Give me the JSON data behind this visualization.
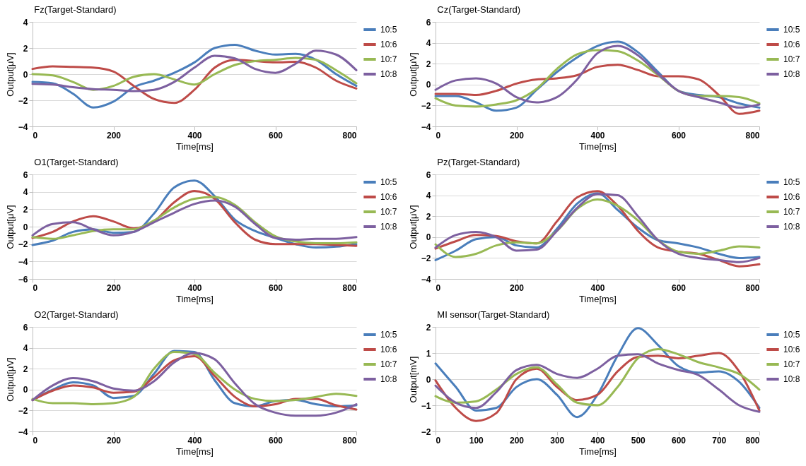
{
  "chart_data": [
    {
      "type": "line",
      "title": "Fz(Target-Standard)",
      "xlabel": "Time[ms]",
      "ylabel": "Output[μV]",
      "x": [
        0,
        50,
        100,
        150,
        200,
        250,
        300,
        350,
        400,
        450,
        500,
        550,
        600,
        650,
        700,
        750,
        800
      ],
      "xlim": [
        0,
        800
      ],
      "xticks": [
        0,
        200,
        400,
        600,
        800
      ],
      "ylim": [
        -4,
        4
      ],
      "yticks": [
        -4,
        -2,
        0,
        2,
        4
      ],
      "grid": "y",
      "legend": "top right",
      "series": [
        {
          "name": "10:5",
          "color": "#4a7ebb",
          "values": [
            -0.6,
            -0.7,
            -1.5,
            -2.55,
            -2.1,
            -1.0,
            -0.5,
            0.1,
            0.9,
            2.0,
            2.25,
            1.8,
            1.5,
            1.55,
            1.1,
            0.0,
            -0.9
          ]
        },
        {
          "name": "10:6",
          "color": "#be4b48",
          "values": [
            0.4,
            0.6,
            0.55,
            0.5,
            0.2,
            -0.9,
            -1.9,
            -2.2,
            -1.2,
            0.5,
            1.1,
            1.0,
            0.9,
            0.95,
            0.5,
            -0.5,
            -1.1
          ]
        },
        {
          "name": "10:7",
          "color": "#98b954",
          "values": [
            0.0,
            -0.1,
            -0.6,
            -1.2,
            -0.9,
            -0.2,
            0.0,
            -0.4,
            -0.8,
            0.0,
            0.7,
            1.0,
            1.1,
            1.25,
            1.1,
            0.3,
            -0.7
          ]
        },
        {
          "name": "10:8",
          "color": "#7d60a0",
          "values": [
            -0.75,
            -0.8,
            -1.0,
            -1.15,
            -1.2,
            -1.3,
            -1.2,
            -0.6,
            0.5,
            1.4,
            1.2,
            0.4,
            0.1,
            0.8,
            1.8,
            1.5,
            0.3
          ]
        }
      ]
    },
    {
      "type": "line",
      "title": "Cz(Target-Standard)",
      "xlabel": "Time[ms]",
      "ylabel": "Output[μV]",
      "x": [
        0,
        50,
        100,
        150,
        200,
        250,
        300,
        350,
        400,
        450,
        500,
        550,
        600,
        650,
        700,
        750,
        800
      ],
      "xlim": [
        0,
        800
      ],
      "xticks": [
        0,
        200,
        400,
        600,
        800
      ],
      "ylim": [
        -4,
        6
      ],
      "yticks": [
        -4,
        -2,
        0,
        2,
        4,
        6
      ],
      "grid": "y",
      "legend": "top right",
      "series": [
        {
          "name": "10:5",
          "color": "#4a7ebb",
          "values": [
            -1.1,
            -1.1,
            -1.7,
            -2.5,
            -2.2,
            -0.5,
            1.2,
            2.6,
            3.7,
            4.1,
            3.1,
            1.2,
            -0.6,
            -1.0,
            -1.2,
            -1.8,
            -2.2
          ]
        },
        {
          "name": "10:6",
          "color": "#be4b48",
          "values": [
            -0.9,
            -0.9,
            -1.0,
            -0.6,
            0.1,
            0.5,
            0.6,
            0.9,
            1.7,
            1.9,
            1.4,
            0.8,
            0.8,
            0.5,
            -1.0,
            -2.8,
            -2.5
          ]
        },
        {
          "name": "10:7",
          "color": "#98b954",
          "values": [
            -1.3,
            -2.0,
            -2.1,
            -1.9,
            -1.5,
            -0.4,
            1.5,
            2.9,
            3.3,
            3.2,
            2.3,
            0.9,
            -0.6,
            -1.1,
            -1.1,
            -1.2,
            -1.8
          ]
        },
        {
          "name": "10:8",
          "color": "#7d60a0",
          "values": [
            -0.5,
            0.4,
            0.6,
            0.1,
            -1.2,
            -1.7,
            -1.2,
            0.5,
            3.0,
            3.7,
            2.8,
            1.0,
            -0.6,
            -1.2,
            -1.7,
            -2.2,
            -1.9
          ]
        }
      ]
    },
    {
      "type": "line",
      "title": "O1(Target-Standard)",
      "xlabel": "Time[ms]",
      "ylabel": "Output[μV]",
      "x": [
        0,
        50,
        100,
        150,
        200,
        250,
        300,
        350,
        400,
        450,
        500,
        550,
        600,
        650,
        700,
        750,
        800
      ],
      "xlim": [
        0,
        800
      ],
      "xticks": [
        0,
        200,
        400,
        600,
        800
      ],
      "ylim": [
        -6,
        6
      ],
      "yticks": [
        -6,
        -4,
        -2,
        0,
        2,
        4,
        6
      ],
      "grid": "y",
      "legend": "top right",
      "series": [
        {
          "name": "10:5",
          "color": "#4a7ebb",
          "values": [
            -2.1,
            -1.6,
            -0.6,
            -0.3,
            -0.7,
            -0.6,
            1.5,
            4.5,
            5.3,
            3.5,
            0.8,
            -0.5,
            -1.3,
            -2.0,
            -2.4,
            -2.3,
            -2.0
          ]
        },
        {
          "name": "10:6",
          "color": "#be4b48",
          "values": [
            -1.3,
            -0.6,
            0.6,
            1.2,
            0.6,
            -0.2,
            0.6,
            2.8,
            4.1,
            3.2,
            0.5,
            -1.5,
            -2.0,
            -2.0,
            -2.0,
            -2.1,
            -2.2
          ]
        },
        {
          "name": "10:7",
          "color": "#98b954",
          "values": [
            -1.2,
            -1.4,
            -1.0,
            -0.5,
            -0.3,
            -0.3,
            0.7,
            2.2,
            3.2,
            3.4,
            2.5,
            0.5,
            -1.1,
            -1.7,
            -1.9,
            -1.9,
            -1.8
          ]
        },
        {
          "name": "10:8",
          "color": "#7d60a0",
          "values": [
            -1.0,
            0.3,
            0.5,
            -0.3,
            -1.0,
            -0.6,
            0.5,
            1.6,
            2.6,
            3.0,
            2.3,
            0.3,
            -1.3,
            -1.5,
            -1.4,
            -1.4,
            -1.2
          ]
        }
      ]
    },
    {
      "type": "line",
      "title": "Pz(Target-Standard)",
      "xlabel": "Time[ms]",
      "ylabel": "Output[μV]",
      "x": [
        0,
        50,
        100,
        150,
        200,
        250,
        300,
        350,
        400,
        450,
        500,
        550,
        600,
        650,
        700,
        750,
        800
      ],
      "xlim": [
        0,
        800
      ],
      "xticks": [
        0,
        200,
        400,
        600,
        800
      ],
      "ylim": [
        -4,
        6
      ],
      "yticks": [
        -4,
        -2,
        0,
        2,
        4,
        6
      ],
      "grid": "y",
      "legend": "top right",
      "series": [
        {
          "name": "10:5",
          "color": "#4a7ebb",
          "values": [
            -2.2,
            -1.3,
            -0.2,
            0.0,
            -0.8,
            -1.0,
            0.8,
            3.2,
            4.2,
            2.6,
            0.9,
            -0.3,
            -0.6,
            -1.0,
            -1.6,
            -2.0,
            -1.9
          ]
        },
        {
          "name": "10:6",
          "color": "#be4b48",
          "values": [
            -1.1,
            -0.4,
            0.2,
            0.1,
            -0.4,
            -0.6,
            1.5,
            3.8,
            4.4,
            3.0,
            0.6,
            -1.0,
            -1.4,
            -1.6,
            -2.2,
            -2.8,
            -2.6
          ]
        },
        {
          "name": "10:7",
          "color": "#98b954",
          "values": [
            -0.7,
            -1.9,
            -1.6,
            -0.8,
            -0.5,
            -0.6,
            0.6,
            2.7,
            3.6,
            3.0,
            1.6,
            -0.3,
            -1.4,
            -1.6,
            -1.3,
            -0.9,
            -1.0
          ]
        },
        {
          "name": "10:8",
          "color": "#7d60a0",
          "values": [
            -1.0,
            0.2,
            0.5,
            0.0,
            -1.3,
            -1.2,
            0.6,
            2.8,
            4.1,
            4.0,
            2.0,
            -0.3,
            -1.6,
            -2.0,
            -2.2,
            -2.4,
            -2.0
          ]
        }
      ]
    },
    {
      "type": "line",
      "title": "O2(Target-Standard)",
      "xlabel": "Time[ms]",
      "ylabel": "Output[μV]",
      "x": [
        0,
        50,
        100,
        150,
        200,
        250,
        300,
        350,
        400,
        450,
        500,
        550,
        600,
        650,
        700,
        750,
        800
      ],
      "xlim": [
        0,
        800
      ],
      "xticks": [
        0,
        200,
        400,
        600,
        800
      ],
      "ylim": [
        -4,
        6
      ],
      "yticks": [
        -4,
        -2,
        0,
        2,
        4,
        6
      ],
      "grid": "y",
      "legend": "top right",
      "series": [
        {
          "name": "10:5",
          "color": "#4a7ebb",
          "values": [
            -1.0,
            0.0,
            0.7,
            0.4,
            -0.8,
            -0.6,
            1.5,
            3.7,
            3.6,
            0.9,
            -1.3,
            -1.6,
            -1.1,
            -1.0,
            -1.4,
            -1.6,
            -1.5
          ]
        },
        {
          "name": "10:6",
          "color": "#be4b48",
          "values": [
            -1.0,
            -0.1,
            0.4,
            0.2,
            -0.3,
            -0.2,
            1.2,
            2.8,
            3.2,
            1.3,
            -0.7,
            -1.6,
            -1.4,
            -0.9,
            -0.9,
            -1.5,
            -1.9
          ]
        },
        {
          "name": "10:7",
          "color": "#98b954",
          "values": [
            -0.9,
            -1.3,
            -1.3,
            -1.4,
            -1.3,
            -0.7,
            2.0,
            3.6,
            3.4,
            1.6,
            0.0,
            -0.9,
            -1.1,
            -1.0,
            -0.7,
            -0.4,
            -0.6
          ]
        },
        {
          "name": "10:8",
          "color": "#7d60a0",
          "values": [
            -1.0,
            0.4,
            1.1,
            0.8,
            0.1,
            -0.1,
            0.8,
            2.6,
            3.5,
            2.9,
            0.6,
            -1.4,
            -2.2,
            -2.5,
            -2.5,
            -2.2,
            -1.4
          ]
        }
      ]
    },
    {
      "type": "line",
      "title": "MI sensor(Target-Standard)",
      "xlabel": "Time[ms]",
      "ylabel": "Output[mV]",
      "x": [
        0,
        50,
        100,
        150,
        200,
        250,
        300,
        350,
        400,
        450,
        500,
        550,
        600,
        650,
        700,
        750,
        800
      ],
      "xlim": [
        0,
        800
      ],
      "xticks": [
        0,
        100,
        200,
        300,
        400,
        500,
        600,
        700,
        800
      ],
      "ylim": [
        -2,
        2
      ],
      "yticks": [
        -2,
        -1,
        0,
        1,
        2
      ],
      "grid": "y",
      "legend": "top right",
      "series": [
        {
          "name": "10:5",
          "color": "#4a7ebb",
          "values": [
            0.6,
            -0.3,
            -1.2,
            -1.1,
            -0.3,
            0.0,
            -0.6,
            -1.45,
            -0.6,
            0.9,
            1.95,
            1.3,
            0.5,
            0.25,
            0.3,
            -0.1,
            -1.1
          ]
        },
        {
          "name": "10:6",
          "color": "#be4b48",
          "values": [
            -0.05,
            -1.1,
            -1.6,
            -1.3,
            0.0,
            0.4,
            -0.3,
            -0.8,
            -0.6,
            0.3,
            0.85,
            0.9,
            0.8,
            0.9,
            1.0,
            0.3,
            -1.2
          ]
        },
        {
          "name": "10:7",
          "color": "#98b954",
          "values": [
            -0.65,
            -0.9,
            -0.85,
            -0.4,
            0.2,
            0.45,
            -0.2,
            -0.9,
            -1.0,
            -0.3,
            0.8,
            1.15,
            0.95,
            0.65,
            0.45,
            0.2,
            -0.4
          ]
        },
        {
          "name": "10:8",
          "color": "#7d60a0",
          "values": [
            -0.25,
            -0.9,
            -1.1,
            -0.5,
            0.35,
            0.55,
            0.2,
            0.05,
            0.4,
            0.9,
            0.95,
            0.6,
            0.35,
            0.15,
            -0.4,
            -1.0,
            -1.25
          ]
        }
      ]
    }
  ]
}
